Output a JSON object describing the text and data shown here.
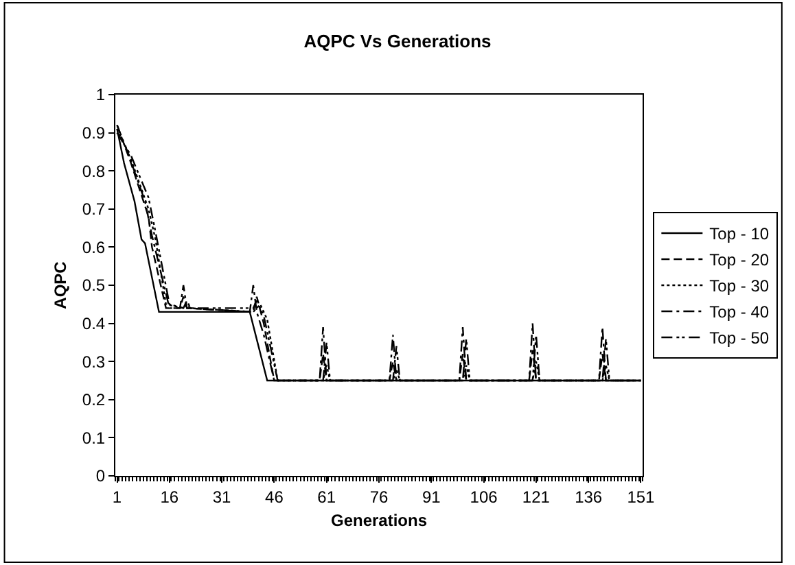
{
  "chart_data": {
    "type": "line",
    "title": "AQPC Vs Generations",
    "xlabel": "Generations",
    "ylabel": "AQPC",
    "xlim": [
      0.5,
      151.5
    ],
    "xticks": [
      1,
      16,
      31,
      46,
      61,
      76,
      91,
      106,
      121,
      136,
      151
    ],
    "ylim": [
      0,
      1
    ],
    "yticks": [
      0,
      0.1,
      0.2,
      0.3,
      0.4,
      0.5,
      0.6,
      0.7,
      0.8,
      0.9,
      1
    ],
    "legend": "right",
    "marker": "none",
    "series": [
      {
        "name": "Top - 10",
        "color": "#000000",
        "line_style": "solid",
        "x": [
          1,
          3,
          6,
          8,
          9,
          13,
          39,
          44,
          151
        ],
        "values": [
          0.91,
          0.82,
          0.72,
          0.62,
          0.61,
          0.43,
          0.43,
          0.25,
          0.25
        ]
      },
      {
        "name": "Top - 20",
        "color": "#000000",
        "line_style": "dashed",
        "x": [
          1,
          5,
          10,
          11,
          15,
          19,
          20,
          21,
          40,
          41,
          43,
          46,
          59,
          60,
          61,
          79,
          80,
          81,
          99,
          100,
          101,
          119,
          120,
          121,
          139,
          140,
          141,
          151
        ],
        "values": [
          0.92,
          0.82,
          0.68,
          0.6,
          0.44,
          0.44,
          0.47,
          0.44,
          0.43,
          0.47,
          0.4,
          0.25,
          0.25,
          0.32,
          0.25,
          0.25,
          0.3,
          0.25,
          0.25,
          0.32,
          0.25,
          0.25,
          0.33,
          0.25,
          0.25,
          0.32,
          0.25,
          0.25
        ]
      },
      {
        "name": "Top - 30",
        "color": "#000000",
        "line_style": "dotted",
        "x": [
          1,
          5,
          10,
          12,
          15,
          20,
          21,
          22,
          40,
          42,
          44,
          47,
          60,
          61,
          62,
          80,
          81,
          82,
          100,
          101,
          102,
          120,
          121,
          122,
          140,
          141,
          142,
          151
        ],
        "values": [
          0.91,
          0.83,
          0.7,
          0.62,
          0.45,
          0.44,
          0.45,
          0.44,
          0.43,
          0.45,
          0.41,
          0.25,
          0.25,
          0.29,
          0.25,
          0.25,
          0.28,
          0.25,
          0.25,
          0.29,
          0.25,
          0.25,
          0.3,
          0.25,
          0.25,
          0.29,
          0.25,
          0.25
        ]
      },
      {
        "name": "Top - 40",
        "color": "#000000",
        "line_style": "dashdot",
        "x": [
          1,
          4,
          9,
          11,
          16,
          19,
          20,
          21,
          39,
          40,
          41,
          43,
          46,
          59,
          60,
          61,
          79,
          80,
          81,
          99,
          100,
          101,
          119,
          120,
          121,
          139,
          140,
          141,
          151
        ],
        "values": [
          0.92,
          0.85,
          0.72,
          0.63,
          0.44,
          0.44,
          0.5,
          0.44,
          0.43,
          0.5,
          0.43,
          0.37,
          0.25,
          0.25,
          0.39,
          0.25,
          0.25,
          0.37,
          0.25,
          0.25,
          0.39,
          0.25,
          0.25,
          0.4,
          0.25,
          0.25,
          0.39,
          0.25,
          0.25
        ]
      },
      {
        "name": "Top - 50",
        "color": "#000000",
        "line_style": "dashdotdot",
        "x": [
          1,
          5,
          10,
          12,
          16,
          20,
          21,
          22,
          40,
          41,
          43,
          47,
          60,
          61,
          62,
          80,
          81,
          82,
          100,
          101,
          102,
          120,
          121,
          122,
          140,
          141,
          142,
          151
        ],
        "values": [
          0.9,
          0.84,
          0.73,
          0.64,
          0.45,
          0.44,
          0.46,
          0.44,
          0.44,
          0.46,
          0.42,
          0.25,
          0.25,
          0.35,
          0.25,
          0.25,
          0.34,
          0.25,
          0.25,
          0.36,
          0.25,
          0.25,
          0.37,
          0.25,
          0.25,
          0.36,
          0.25,
          0.25
        ]
      }
    ]
  }
}
